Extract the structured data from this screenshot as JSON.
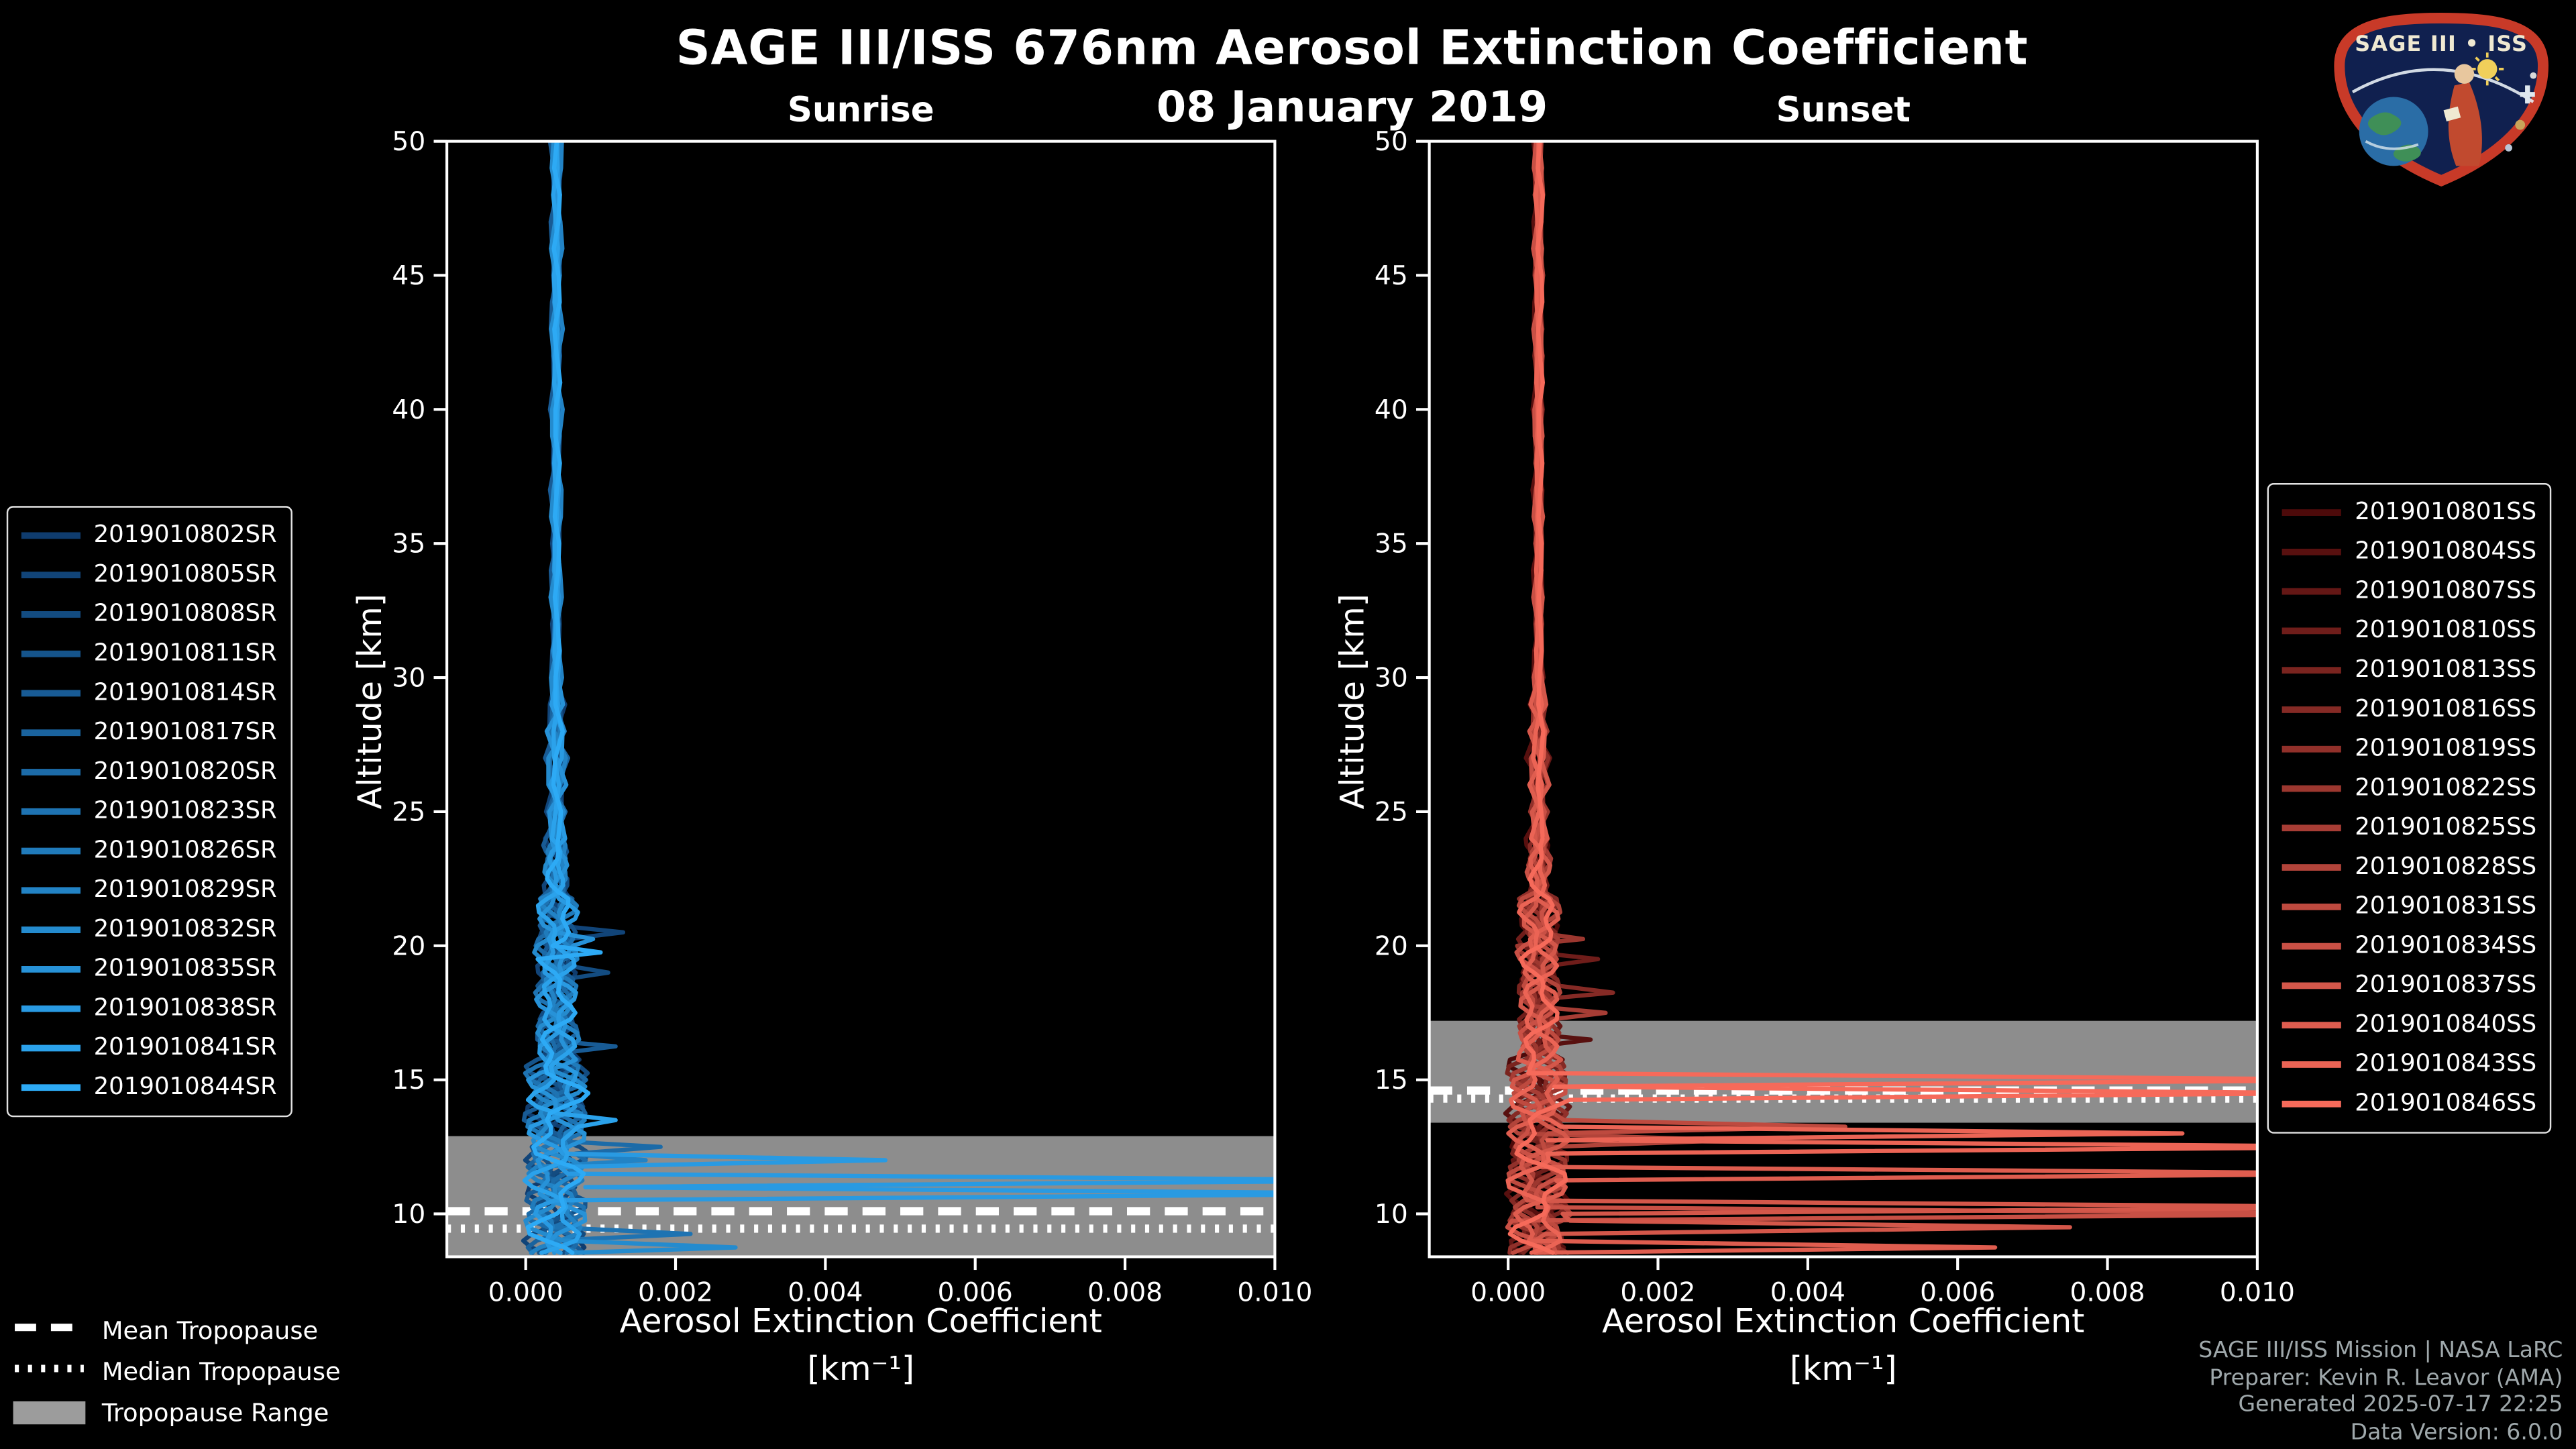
{
  "header": {
    "title": "SAGE III/ISS 676nm Aerosol Extinction Coefficient",
    "date": "08 January 2019"
  },
  "logo": {
    "title": "SAGE III • ISS"
  },
  "footer": {
    "lines": [
      "SAGE III/ISS Mission | NASA LaRC",
      "Preparer: Kevin R. Leavor (AMA)",
      "Generated 2025-07-17 22:25",
      "Data Version: 6.0.0"
    ]
  },
  "tropopause_legend": {
    "mean": "Mean Tropopause",
    "median": "Median Tropopause",
    "range": "Tropopause Range"
  },
  "chart_data": [
    {
      "type": "line",
      "title": "Sunrise",
      "xlabel": "Aerosol Extinction Coefficient",
      "xlabel_units": "[km⁻¹]",
      "ylabel": "Altitude [km]",
      "xlim": [
        -0.00105,
        0.01
      ],
      "ylim": [
        8.4,
        50
      ],
      "xticks": [
        "0.000",
        "0.002",
        "0.004",
        "0.006",
        "0.008",
        "0.010"
      ],
      "yticks": [
        10,
        15,
        20,
        25,
        30,
        35,
        40,
        45,
        50
      ],
      "grid": false,
      "legend_position": "outside-left",
      "background_extinction_km1": 0.0004,
      "tropopause": {
        "mean_km": 10.1,
        "median_km": 9.45,
        "range_km": [
          8.4,
          12.9
        ]
      },
      "series": [
        {
          "name": "2019010802SR",
          "color": "#0f3c6e",
          "base": 0.0004,
          "seed": 1,
          "spikes": []
        },
        {
          "name": "2019010805SR",
          "color": "#114478",
          "base": 0.00038,
          "seed": 2,
          "spikes": [
            [
              0.0013,
              20.5
            ]
          ]
        },
        {
          "name": "2019010808SR",
          "color": "#134c81",
          "base": 0.00044,
          "seed": 3,
          "spikes": [
            [
              0.0011,
              18.9
            ]
          ]
        },
        {
          "name": "2019010811SR",
          "color": "#15548b",
          "base": 0.00041,
          "seed": 4,
          "spikes": []
        },
        {
          "name": "2019010814SR",
          "color": "#185b95",
          "base": 0.00037,
          "seed": 5,
          "spikes": [
            [
              0.0012,
              16.3
            ]
          ]
        },
        {
          "name": "2019010817SR",
          "color": "#1a639e",
          "base": 0.00043,
          "seed": 6,
          "spikes": []
        },
        {
          "name": "2019010820SR",
          "color": "#1c6ba8",
          "base": 0.0004,
          "seed": 7,
          "spikes": [
            [
              0.0018,
              12.6
            ]
          ]
        },
        {
          "name": "2019010823SR",
          "color": "#1e73b2",
          "base": 0.00039,
          "seed": 8,
          "spikes": [
            [
              0.0022,
              9.3
            ]
          ]
        },
        {
          "name": "2019010826SR",
          "color": "#207bbb",
          "base": 0.00042,
          "seed": 9,
          "spikes": []
        },
        {
          "name": "2019010829SR",
          "color": "#2283c5",
          "base": 0.00045,
          "seed": 10,
          "spikes": [
            [
              0.0016,
              11.9
            ]
          ]
        },
        {
          "name": "2019010832SR",
          "color": "#248bce",
          "base": 0.00038,
          "seed": 11,
          "spikes": [
            [
              0.0028,
              8.8
            ]
          ]
        },
        {
          "name": "2019010835SR",
          "color": "#2792d8",
          "base": 0.00041,
          "seed": 12,
          "spikes": [
            [
              0.0009,
              20.3
            ]
          ]
        },
        {
          "name": "2019010838SR",
          "color": "#299ae2",
          "base": 0.00043,
          "seed": 13,
          "spikes": [
            [
              0.0048,
              12.1
            ],
            [
              0.012,
              11.3
            ],
            [
              0.012,
              10.7
            ]
          ]
        },
        {
          "name": "2019010841SR",
          "color": "#2ba2eb",
          "base": 0.0004,
          "seed": 14,
          "spikes": [
            [
              0.0012,
              13.4
            ]
          ]
        },
        {
          "name": "2019010844SR",
          "color": "#2daaf5",
          "base": 0.00042,
          "seed": 15,
          "spikes": [
            [
              0.001,
              19.8
            ]
          ]
        }
      ]
    },
    {
      "type": "line",
      "title": "Sunset",
      "xlabel": "Aerosol Extinction Coefficient",
      "xlabel_units": "[km⁻¹]",
      "ylabel": "Altitude [km]",
      "xlim": [
        -0.00105,
        0.01
      ],
      "ylim": [
        8.4,
        50
      ],
      "xticks": [
        "0.000",
        "0.002",
        "0.004",
        "0.006",
        "0.008",
        "0.010"
      ],
      "yticks": [
        10,
        15,
        20,
        25,
        30,
        35,
        40,
        45,
        50
      ],
      "grid": false,
      "legend_position": "outside-right",
      "background_extinction_km1": 0.0004,
      "tropopause": {
        "mean_km": 14.6,
        "median_km": 14.3,
        "range_km": [
          13.4,
          17.2
        ]
      },
      "series": [
        {
          "name": "2019010801SS",
          "color": "#4d0a0a",
          "base": 0.0004,
          "seed": 21,
          "spikes": []
        },
        {
          "name": "2019010804SS",
          "color": "#58100f",
          "base": 0.00037,
          "seed": 22,
          "spikes": [
            [
              0.0011,
              16.5
            ]
          ]
        },
        {
          "name": "2019010807SS",
          "color": "#641715",
          "base": 0.00043,
          "seed": 23,
          "spikes": []
        },
        {
          "name": "2019010810SS",
          "color": "#6f1d1a",
          "base": 0.0004,
          "seed": 24,
          "spikes": [
            [
              0.0012,
              19.5
            ]
          ]
        },
        {
          "name": "2019010813SS",
          "color": "#7a241f",
          "base": 0.00038,
          "seed": 25,
          "spikes": []
        },
        {
          "name": "2019010816SS",
          "color": "#852a25",
          "base": 0.00042,
          "seed": 26,
          "spikes": [
            [
              0.0014,
              18.2
            ]
          ]
        },
        {
          "name": "2019010819SS",
          "color": "#91302a",
          "base": 0.00041,
          "seed": 27,
          "spikes": []
        },
        {
          "name": "2019010822SS",
          "color": "#9c372f",
          "base": 0.00039,
          "seed": 28,
          "spikes": [
            [
              0.001,
              20.2
            ]
          ]
        },
        {
          "name": "2019010825SS",
          "color": "#a73d35",
          "base": 0.00043,
          "seed": 29,
          "spikes": [
            [
              0.0013,
              17.4
            ]
          ]
        },
        {
          "name": "2019010828SS",
          "color": "#b2443a",
          "base": 0.00044,
          "seed": 30,
          "spikes": [
            [
              0.003,
              12.8
            ]
          ]
        },
        {
          "name": "2019010831SS",
          "color": "#be4a3f",
          "base": 0.0004,
          "seed": 31,
          "spikes": [
            [
              0.0045,
              13.2
            ]
          ]
        },
        {
          "name": "2019010834SS",
          "color": "#c95045",
          "base": 0.00038,
          "seed": 32,
          "spikes": [
            [
              0.012,
              9.9
            ]
          ]
        },
        {
          "name": "2019010837SS",
          "color": "#d4574a",
          "base": 0.00042,
          "seed": 33,
          "spikes": [
            [
              0.012,
              10.2
            ],
            [
              0.0075,
              9.5
            ]
          ]
        },
        {
          "name": "2019010840SS",
          "color": "#df5d4f",
          "base": 0.00041,
          "seed": 34,
          "spikes": [
            [
              0.012,
              11.5
            ],
            [
              0.0065,
              8.8
            ]
          ]
        },
        {
          "name": "2019010843SS",
          "color": "#eb6455",
          "base": 0.00039,
          "seed": 35,
          "spikes": [
            [
              0.012,
              12.4
            ],
            [
              0.009,
              13.0
            ]
          ]
        },
        {
          "name": "2019010846SS",
          "color": "#f66a5a",
          "base": 0.00043,
          "seed": 36,
          "spikes": [
            [
              0.012,
              15.1
            ],
            [
              0.011,
              14.6
            ]
          ]
        }
      ]
    }
  ]
}
